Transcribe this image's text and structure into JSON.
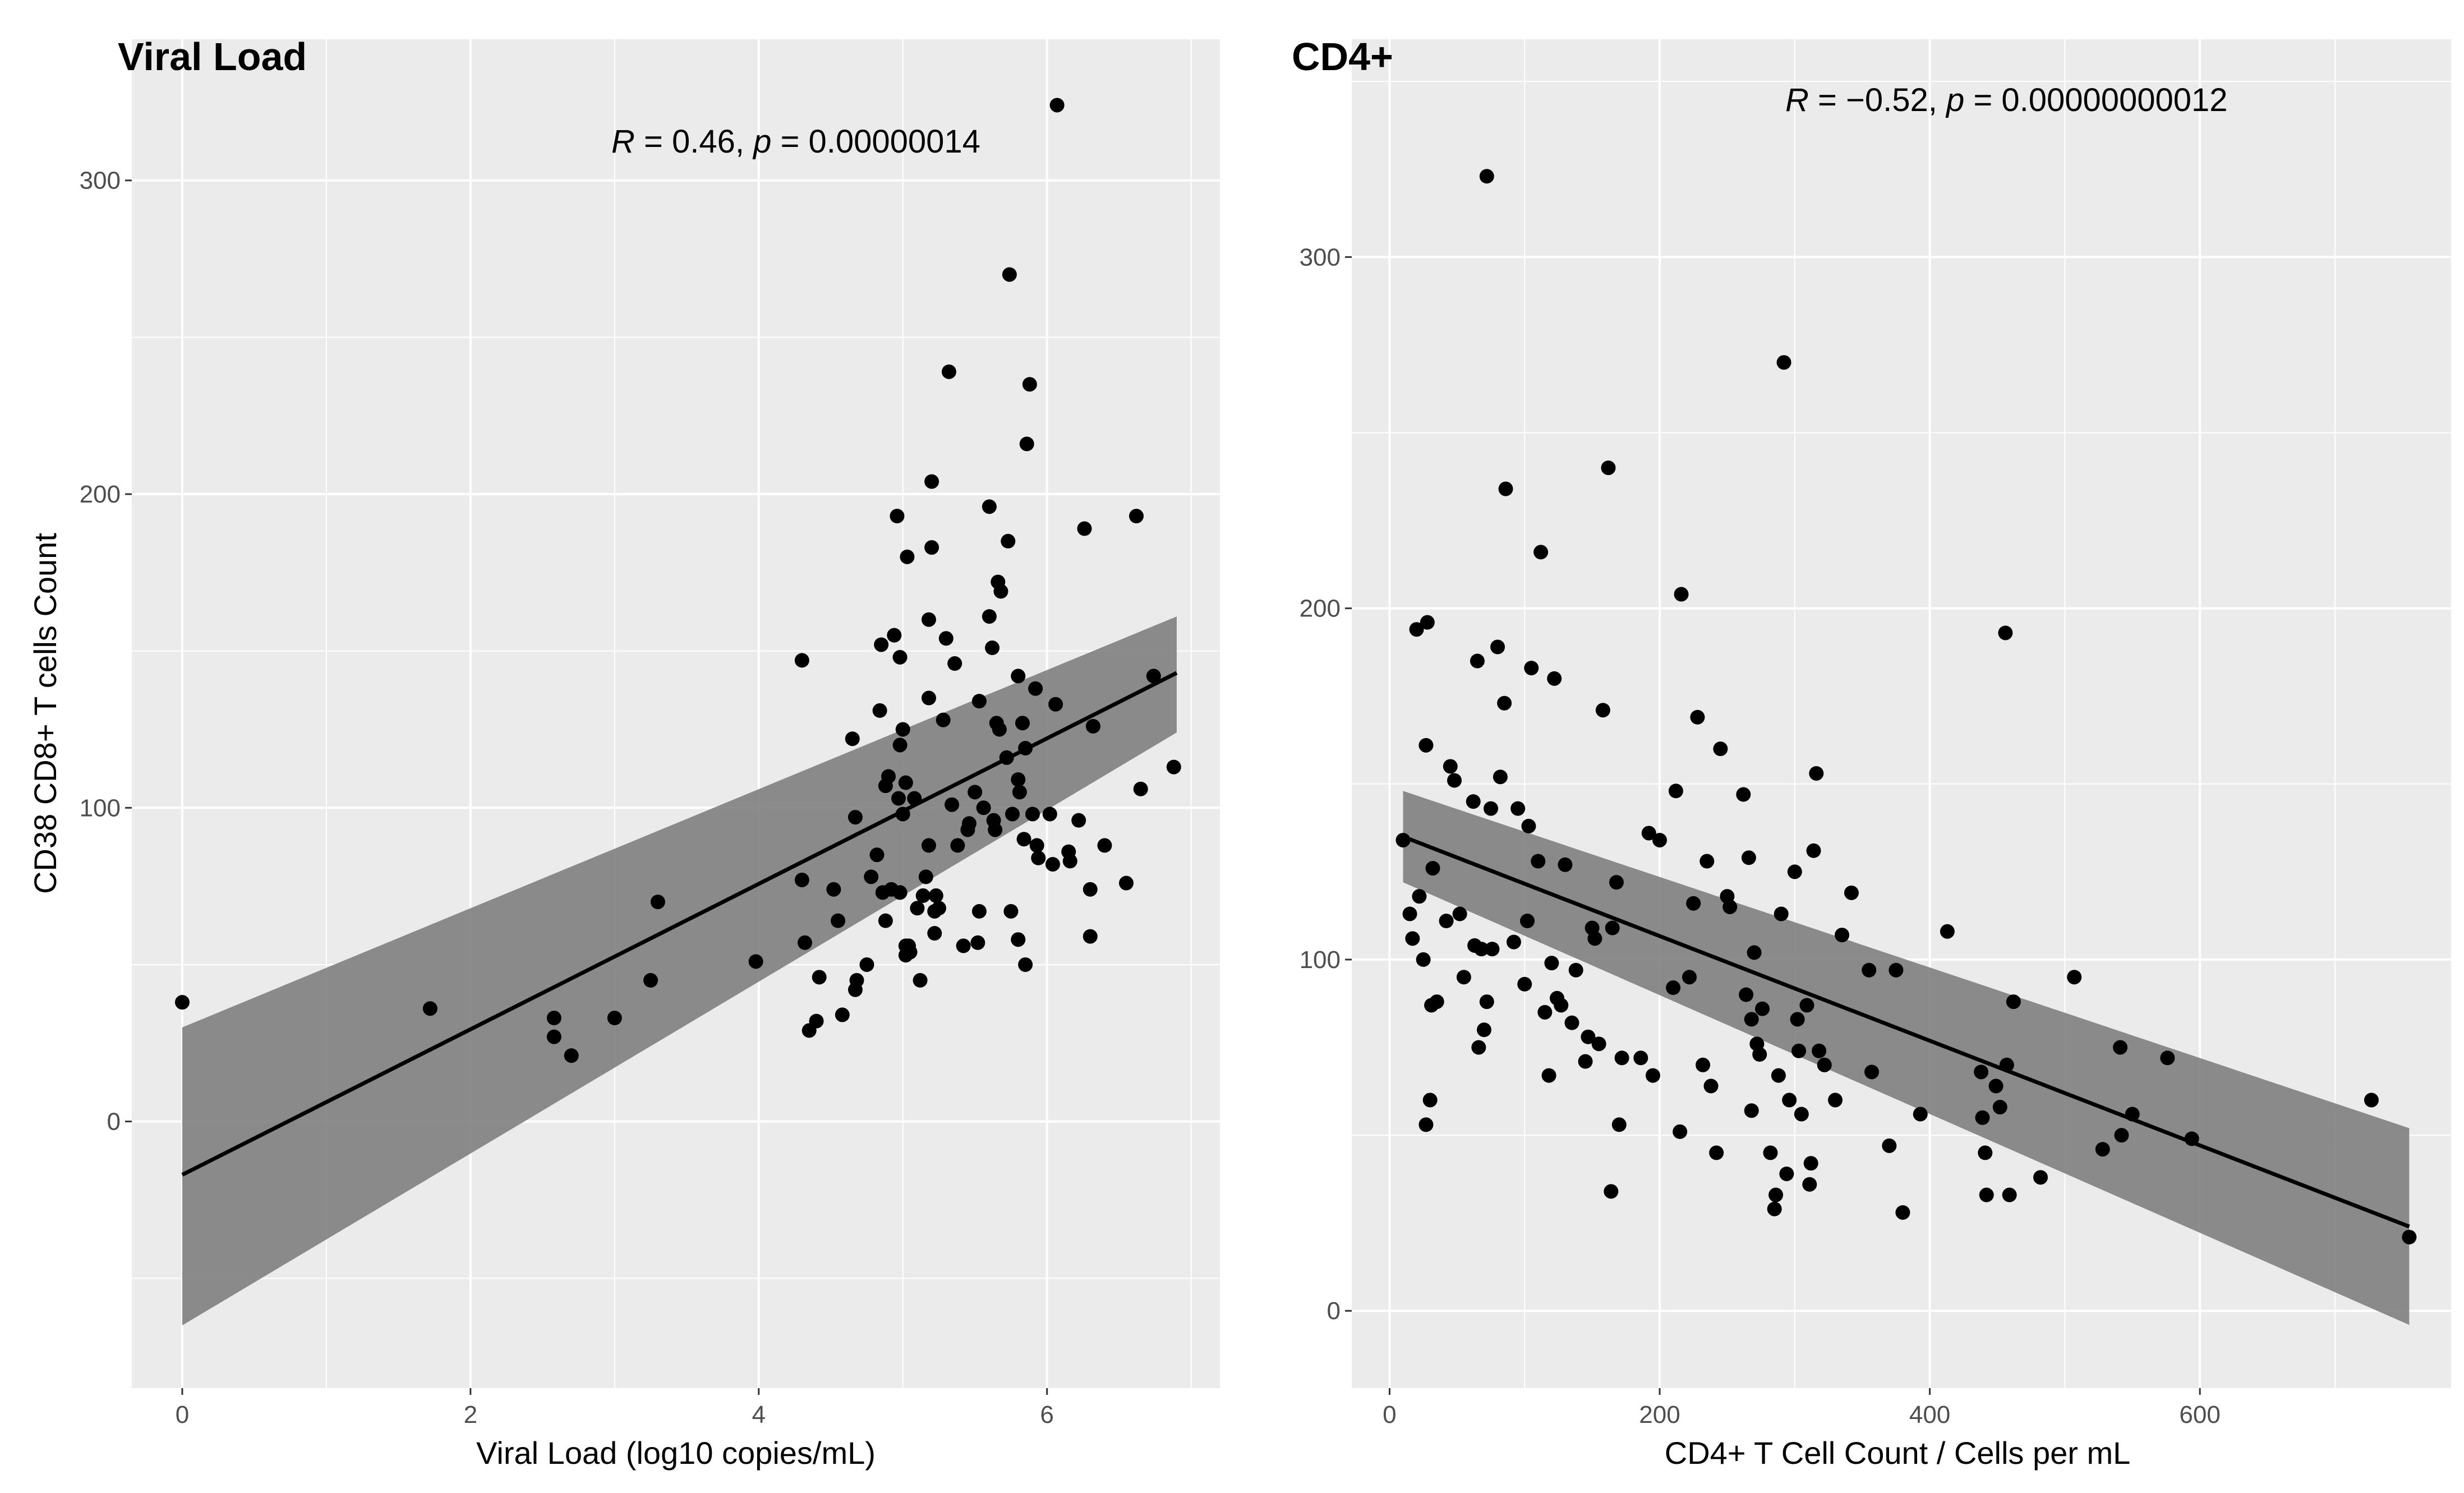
{
  "chart_data": [
    {
      "type": "scatter",
      "title": "Viral Load",
      "xlabel": "Viral Load (log10 copies/mL)",
      "ylabel": "CD38 CD8+ T cells Count",
      "xlim": [
        -0.35,
        7.2
      ],
      "ylim": [
        -85,
        345
      ],
      "xticks": [
        0,
        2,
        4,
        6
      ],
      "yticks": [
        0,
        100,
        200,
        300
      ],
      "xtick_labels": [
        "0",
        "2",
        "4",
        "6"
      ],
      "ytick_labels": [
        "0",
        "100",
        "200",
        "300"
      ],
      "grid": true,
      "annotation": {
        "r_label": "R",
        "r_text": " = 0.46, ",
        "p_label": "p",
        "p_text": " = 0.00000014"
      },
      "fit": {
        "x_start": 0,
        "x_end": 6.9,
        "y_start": -17,
        "y_end": 143
      },
      "band": {
        "lower_start": -65,
        "upper_start": 30,
        "lower_end": 124,
        "upper_end": 161
      },
      "points": [
        [
          0.0,
          38
        ],
        [
          1.72,
          36
        ],
        [
          2.58,
          33
        ],
        [
          2.58,
          27
        ],
        [
          2.7,
          21
        ],
        [
          3.0,
          33
        ],
        [
          3.25,
          45
        ],
        [
          3.3,
          70
        ],
        [
          3.98,
          51
        ],
        [
          4.3,
          147
        ],
        [
          4.3,
          77
        ],
        [
          4.32,
          57
        ],
        [
          4.35,
          29
        ],
        [
          4.4,
          32
        ],
        [
          4.42,
          46
        ],
        [
          4.52,
          74
        ],
        [
          4.55,
          64
        ],
        [
          4.58,
          34
        ],
        [
          4.65,
          122
        ],
        [
          4.67,
          97
        ],
        [
          4.67,
          42
        ],
        [
          4.68,
          45
        ],
        [
          4.75,
          50
        ],
        [
          4.78,
          78
        ],
        [
          4.82,
          85
        ],
        [
          4.84,
          131
        ],
        [
          4.85,
          152
        ],
        [
          4.86,
          73
        ],
        [
          4.88,
          64
        ],
        [
          4.88,
          107
        ],
        [
          4.9,
          110
        ],
        [
          4.92,
          74
        ],
        [
          4.94,
          155
        ],
        [
          4.96,
          193
        ],
        [
          4.97,
          103
        ],
        [
          4.98,
          73
        ],
        [
          4.98,
          148
        ],
        [
          4.98,
          120
        ],
        [
          5.0,
          125
        ],
        [
          5.0,
          98
        ],
        [
          5.02,
          108
        ],
        [
          5.02,
          56
        ],
        [
          5.02,
          53
        ],
        [
          5.03,
          180
        ],
        [
          5.04,
          56
        ],
        [
          5.05,
          54
        ],
        [
          5.08,
          103
        ],
        [
          5.1,
          68
        ],
        [
          5.12,
          45
        ],
        [
          5.14,
          72
        ],
        [
          5.16,
          78
        ],
        [
          5.18,
          160
        ],
        [
          5.18,
          135
        ],
        [
          5.18,
          88
        ],
        [
          5.2,
          183
        ],
        [
          5.2,
          204
        ],
        [
          5.22,
          60
        ],
        [
          5.22,
          67
        ],
        [
          5.23,
          72
        ],
        [
          5.25,
          68
        ],
        [
          5.28,
          128
        ],
        [
          5.3,
          154
        ],
        [
          5.32,
          239
        ],
        [
          5.34,
          101
        ],
        [
          5.36,
          146
        ],
        [
          5.38,
          88
        ],
        [
          5.42,
          56
        ],
        [
          5.45,
          93
        ],
        [
          5.46,
          95
        ],
        [
          5.5,
          105
        ],
        [
          5.52,
          57
        ],
        [
          5.53,
          67
        ],
        [
          5.53,
          134
        ],
        [
          5.56,
          100
        ],
        [
          5.6,
          196
        ],
        [
          5.6,
          161
        ],
        [
          5.62,
          151
        ],
        [
          5.63,
          96
        ],
        [
          5.64,
          93
        ],
        [
          5.65,
          127
        ],
        [
          5.66,
          172
        ],
        [
          5.67,
          125
        ],
        [
          5.68,
          169
        ],
        [
          5.72,
          116
        ],
        [
          5.73,
          185
        ],
        [
          5.74,
          270
        ],
        [
          5.75,
          67
        ],
        [
          5.76,
          98
        ],
        [
          5.8,
          58
        ],
        [
          5.8,
          142
        ],
        [
          5.8,
          109
        ],
        [
          5.81,
          105
        ],
        [
          5.83,
          127
        ],
        [
          5.84,
          90
        ],
        [
          5.85,
          119
        ],
        [
          5.85,
          50
        ],
        [
          5.86,
          216
        ],
        [
          5.88,
          235
        ],
        [
          5.9,
          98
        ],
        [
          5.92,
          138
        ],
        [
          5.93,
          88
        ],
        [
          5.94,
          84
        ],
        [
          6.02,
          98
        ],
        [
          6.04,
          82
        ],
        [
          6.06,
          133
        ],
        [
          6.07,
          324
        ],
        [
          6.15,
          86
        ],
        [
          6.16,
          83
        ],
        [
          6.22,
          96
        ],
        [
          6.26,
          189
        ],
        [
          6.3,
          59
        ],
        [
          6.3,
          74
        ],
        [
          6.32,
          126
        ],
        [
          6.4,
          88
        ],
        [
          6.55,
          76
        ],
        [
          6.62,
          193
        ],
        [
          6.65,
          106
        ],
        [
          6.74,
          142
        ],
        [
          6.88,
          113
        ]
      ]
    },
    {
      "type": "scatter",
      "title": "CD4+",
      "xlabel": "CD4+ T Cell Count / Cells per mL",
      "ylabel": "",
      "xlim": [
        -28,
        786
      ],
      "ylim": [
        -22,
        362
      ],
      "xticks": [
        0,
        200,
        400,
        600
      ],
      "yticks": [
        0,
        100,
        200,
        300
      ],
      "xtick_labels": [
        "0",
        "200",
        "400",
        "600"
      ],
      "ytick_labels": [
        "0",
        "100",
        "200",
        "300"
      ],
      "grid": true,
      "annotation": {
        "r_label": "R",
        "r_text": " = −0.52, ",
        "p_label": "p",
        "p_text": " = 0.00000000012"
      },
      "fit": {
        "x_start": 10,
        "x_end": 755,
        "y_start": 135,
        "y_end": 24
      },
      "band": {
        "lower_start": 122,
        "upper_start": 148,
        "lower_end": -4,
        "upper_end": 52
      },
      "points": [
        [
          10,
          134
        ],
        [
          15,
          113
        ],
        [
          17,
          106
        ],
        [
          20,
          194
        ],
        [
          22,
          118
        ],
        [
          25,
          100
        ],
        [
          27,
          53
        ],
        [
          27,
          161
        ],
        [
          28,
          196
        ],
        [
          30,
          60
        ],
        [
          31,
          87
        ],
        [
          32,
          126
        ],
        [
          35,
          88
        ],
        [
          42,
          111
        ],
        [
          45,
          155
        ],
        [
          48,
          151
        ],
        [
          52,
          113
        ],
        [
          55,
          95
        ],
        [
          62,
          145
        ],
        [
          63,
          104
        ],
        [
          65,
          185
        ],
        [
          66,
          75
        ],
        [
          68,
          103
        ],
        [
          70,
          80
        ],
        [
          72,
          88
        ],
        [
          72,
          323
        ],
        [
          75,
          143
        ],
        [
          76,
          103
        ],
        [
          80,
          189
        ],
        [
          82,
          152
        ],
        [
          85,
          173
        ],
        [
          86,
          234
        ],
        [
          92,
          105
        ],
        [
          95,
          143
        ],
        [
          100,
          93
        ],
        [
          102,
          111
        ],
        [
          103,
          138
        ],
        [
          105,
          183
        ],
        [
          110,
          128
        ],
        [
          112,
          216
        ],
        [
          115,
          85
        ],
        [
          118,
          67
        ],
        [
          120,
          99
        ],
        [
          122,
          180
        ],
        [
          124,
          89
        ],
        [
          127,
          87
        ],
        [
          130,
          127
        ],
        [
          135,
          82
        ],
        [
          138,
          97
        ],
        [
          145,
          71
        ],
        [
          147,
          78
        ],
        [
          150,
          109
        ],
        [
          152,
          106
        ],
        [
          155,
          76
        ],
        [
          158,
          171
        ],
        [
          162,
          240
        ],
        [
          164,
          34
        ],
        [
          165,
          109
        ],
        [
          168,
          122
        ],
        [
          170,
          53
        ],
        [
          172,
          72
        ],
        [
          186,
          72
        ],
        [
          192,
          136
        ],
        [
          195,
          67
        ],
        [
          200,
          134
        ],
        [
          210,
          92
        ],
        [
          212,
          148
        ],
        [
          215,
          51
        ],
        [
          216,
          204
        ],
        [
          222,
          95
        ],
        [
          225,
          116
        ],
        [
          228,
          169
        ],
        [
          232,
          70
        ],
        [
          235,
          128
        ],
        [
          238,
          64
        ],
        [
          242,
          45
        ],
        [
          245,
          160
        ],
        [
          250,
          118
        ],
        [
          252,
          115
        ],
        [
          262,
          147
        ],
        [
          264,
          90
        ],
        [
          266,
          129
        ],
        [
          268,
          57
        ],
        [
          268,
          83
        ],
        [
          270,
          102
        ],
        [
          272,
          76
        ],
        [
          274,
          73
        ],
        [
          276,
          86
        ],
        [
          282,
          45
        ],
        [
          285,
          29
        ],
        [
          286,
          33
        ],
        [
          288,
          67
        ],
        [
          290,
          113
        ],
        [
          292,
          270
        ],
        [
          294,
          39
        ],
        [
          296,
          60
        ],
        [
          300,
          125
        ],
        [
          302,
          83
        ],
        [
          303,
          74
        ],
        [
          305,
          56
        ],
        [
          309,
          87
        ],
        [
          311,
          36
        ],
        [
          312,
          42
        ],
        [
          314,
          131
        ],
        [
          316,
          153
        ],
        [
          318,
          74
        ],
        [
          322,
          70
        ],
        [
          330,
          60
        ],
        [
          335,
          107
        ],
        [
          342,
          119
        ],
        [
          355,
          97
        ],
        [
          357,
          68
        ],
        [
          370,
          47
        ],
        [
          375,
          97
        ],
        [
          380,
          28
        ],
        [
          393,
          56
        ],
        [
          413,
          108
        ],
        [
          438,
          68
        ],
        [
          439,
          55
        ],
        [
          441,
          45
        ],
        [
          442,
          33
        ],
        [
          449,
          64
        ],
        [
          452,
          58
        ],
        [
          456,
          193
        ],
        [
          457,
          70
        ],
        [
          459,
          33
        ],
        [
          462,
          88
        ],
        [
          482,
          38
        ],
        [
          507,
          95
        ],
        [
          528,
          46
        ],
        [
          541,
          75
        ],
        [
          542,
          50
        ],
        [
          550,
          56
        ],
        [
          576,
          72
        ],
        [
          594,
          49
        ],
        [
          727,
          60
        ],
        [
          755,
          21
        ]
      ]
    }
  ]
}
